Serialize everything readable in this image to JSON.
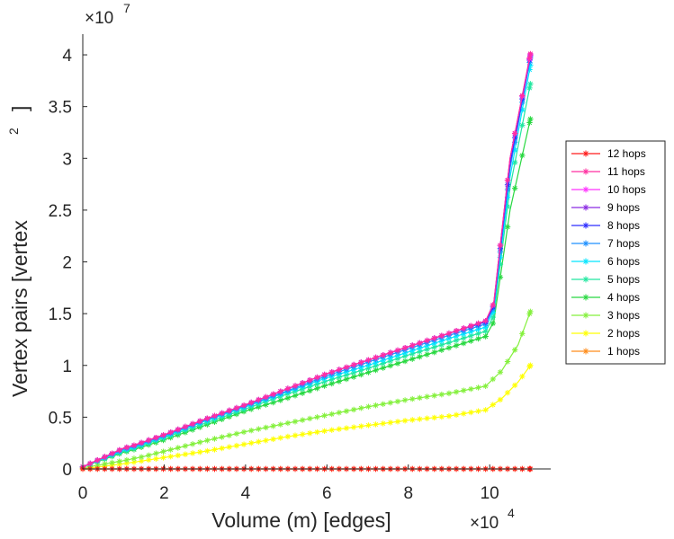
{
  "chart_data": {
    "type": "line",
    "xlabel": "Volume (m) [edges]",
    "ylabel": "Vertex pairs [vertex",
    "ylabel_sup": "2",
    "ylabel_close": "]",
    "x_multiplier_base": "×10",
    "x_multiplier_exp": "4",
    "y_multiplier_base": "×10",
    "y_multiplier_exp": "7",
    "xlim": [
      0,
      11.5
    ],
    "ylim": [
      0,
      4.2
    ],
    "x_ticks": [
      0,
      2,
      4,
      6,
      8,
      10
    ],
    "x_tick_labels": [
      "0",
      "2",
      "4",
      "6",
      "8",
      "10"
    ],
    "y_ticks": [
      0,
      0.5,
      1,
      1.5,
      2,
      2.5,
      3,
      3.5,
      4
    ],
    "y_tick_labels": [
      "0",
      "0.5",
      "1",
      "1.5",
      "2",
      "2.5",
      "3",
      "3.5",
      "4"
    ],
    "legend_position": "right",
    "series": [
      {
        "name": "12 hops",
        "color": "#ff1a1a",
        "x": [
          0,
          2,
          4,
          6,
          8,
          10,
          11
        ],
        "y": [
          0,
          0,
          0,
          0,
          0,
          0,
          0
        ]
      },
      {
        "name": "11 hops",
        "color": "#ff2fa0",
        "x": [
          0,
          1,
          1.2,
          2,
          3,
          4,
          5,
          6,
          7,
          8,
          9,
          9.9,
          10.1,
          10.5,
          11
        ],
        "y": [
          0.02,
          0.2,
          0.22,
          0.33,
          0.48,
          0.62,
          0.77,
          0.92,
          1.05,
          1.18,
          1.31,
          1.43,
          1.6,
          3.0,
          4.01
        ]
      },
      {
        "name": "10 hops",
        "color": "#ff33ff",
        "x": [
          0,
          1,
          1.2,
          2,
          3,
          4,
          5,
          6,
          7,
          8,
          9,
          9.9,
          10.1,
          10.5,
          11
        ],
        "y": [
          0.02,
          0.2,
          0.22,
          0.33,
          0.48,
          0.62,
          0.77,
          0.92,
          1.05,
          1.18,
          1.31,
          1.43,
          1.6,
          3.0,
          4.0
        ]
      },
      {
        "name": "9 hops",
        "color": "#8a2be2",
        "x": [
          0,
          1,
          1.2,
          2,
          3,
          4,
          5,
          6,
          7,
          8,
          9,
          9.9,
          10.1,
          10.5,
          11
        ],
        "y": [
          0.02,
          0.2,
          0.22,
          0.33,
          0.48,
          0.62,
          0.77,
          0.92,
          1.05,
          1.18,
          1.31,
          1.43,
          1.6,
          3.0,
          4.0
        ]
      },
      {
        "name": "8 hops",
        "color": "#2c2cff",
        "x": [
          0,
          1,
          1.2,
          2,
          3,
          4,
          5,
          6,
          7,
          8,
          9,
          9.9,
          10.1,
          10.5,
          11
        ],
        "y": [
          0.02,
          0.2,
          0.22,
          0.33,
          0.48,
          0.62,
          0.77,
          0.92,
          1.05,
          1.18,
          1.31,
          1.42,
          1.58,
          2.95,
          3.99
        ]
      },
      {
        "name": "7 hops",
        "color": "#1e90ff",
        "x": [
          0,
          1,
          1.2,
          2,
          3,
          4,
          5,
          6,
          7,
          8,
          9,
          9.9,
          10.1,
          10.5,
          11
        ],
        "y": [
          0.02,
          0.19,
          0.21,
          0.32,
          0.47,
          0.61,
          0.75,
          0.9,
          1.03,
          1.16,
          1.29,
          1.4,
          1.56,
          2.9,
          3.97
        ]
      },
      {
        "name": "6 hops",
        "color": "#00e5ff",
        "x": [
          0,
          1,
          1.2,
          2,
          3,
          4,
          5,
          6,
          7,
          8,
          9,
          9.9,
          10.1,
          10.5,
          11
        ],
        "y": [
          0.02,
          0.18,
          0.2,
          0.31,
          0.46,
          0.6,
          0.74,
          0.88,
          1.0,
          1.13,
          1.26,
          1.37,
          1.53,
          2.82,
          3.9
        ]
      },
      {
        "name": "5 hops",
        "color": "#21e8a0",
        "x": [
          0,
          1,
          1.2,
          2,
          3,
          4,
          5,
          6,
          7,
          8,
          9,
          9.9,
          10.1,
          10.5,
          11
        ],
        "y": [
          0.02,
          0.17,
          0.19,
          0.3,
          0.44,
          0.58,
          0.72,
          0.85,
          0.97,
          1.1,
          1.22,
          1.33,
          1.48,
          2.72,
          3.72
        ]
      },
      {
        "name": "4 hops",
        "color": "#28d840",
        "x": [
          0,
          1,
          1.2,
          2,
          3,
          4,
          5,
          6,
          7,
          8,
          9,
          9.9,
          10.1,
          10.5,
          11
        ],
        "y": [
          0.02,
          0.16,
          0.18,
          0.28,
          0.42,
          0.56,
          0.68,
          0.81,
          0.93,
          1.05,
          1.17,
          1.28,
          1.42,
          2.5,
          3.38
        ]
      },
      {
        "name": "3 hops",
        "color": "#84f03c",
        "x": [
          0,
          1,
          1.5,
          2,
          3,
          4,
          5,
          6,
          7,
          8,
          9,
          9.9,
          10.3,
          10.7,
          11
        ],
        "y": [
          0.01,
          0.08,
          0.12,
          0.17,
          0.27,
          0.36,
          0.44,
          0.52,
          0.6,
          0.67,
          0.73,
          0.8,
          0.95,
          1.2,
          1.52
        ]
      },
      {
        "name": "2 hops",
        "color": "#ffff00",
        "x": [
          0,
          1,
          1.5,
          2,
          3,
          4,
          5,
          6,
          7,
          8,
          9,
          9.9,
          10.3,
          10.7,
          11
        ],
        "y": [
          0.0,
          0.05,
          0.08,
          0.11,
          0.17,
          0.24,
          0.31,
          0.37,
          0.42,
          0.47,
          0.51,
          0.57,
          0.68,
          0.84,
          1.0
        ]
      },
      {
        "name": "1 hops",
        "color": "#ff8c1a",
        "x": [
          0,
          2,
          4,
          6,
          8,
          10,
          11
        ],
        "y": [
          0,
          0,
          0,
          0,
          0,
          0,
          0
        ]
      }
    ]
  }
}
